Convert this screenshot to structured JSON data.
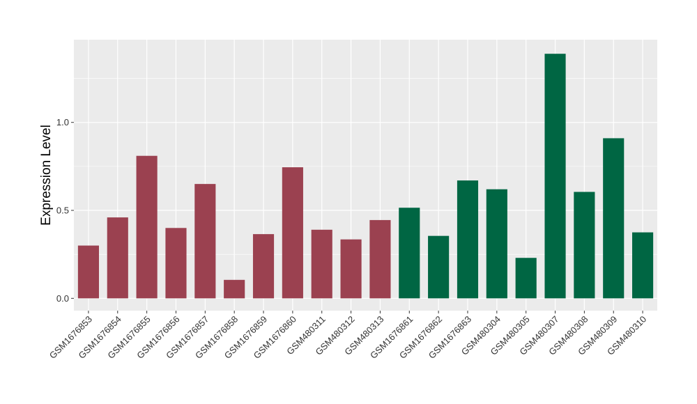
{
  "chart_data": {
    "type": "bar",
    "ylabel": "Expression Level",
    "xlabel": "",
    "title": "",
    "ylim": [
      -0.07,
      1.47
    ],
    "yticks": [
      0.0,
      0.5,
      1.0
    ],
    "ytick_labels": [
      "0.0",
      "0.5",
      "1.0"
    ],
    "grid": true,
    "categories": [
      "GSM1676853",
      "GSM1676854",
      "GSM1676855",
      "GSM1676856",
      "GSM1676857",
      "GSM1676858",
      "GSM1676859",
      "GSM1676860",
      "GSM480311",
      "GSM480312",
      "GSM480313",
      "GSM1676861",
      "GSM1676862",
      "GSM1676863",
      "GSM480304",
      "GSM480305",
      "GSM480307",
      "GSM480308",
      "GSM480309",
      "GSM480310"
    ],
    "values": [
      0.3,
      0.46,
      0.81,
      0.4,
      0.65,
      0.105,
      0.365,
      0.745,
      0.39,
      0.335,
      0.445,
      0.515,
      0.355,
      0.67,
      0.62,
      0.23,
      1.39,
      0.605,
      0.91,
      0.375
    ],
    "groups": [
      0,
      0,
      0,
      0,
      0,
      0,
      0,
      0,
      0,
      0,
      0,
      1,
      1,
      1,
      1,
      1,
      1,
      1,
      1,
      1
    ],
    "group_colors": [
      "#9b4150",
      "#006643"
    ],
    "panel_color": "#ebebeb",
    "grid_color": "#ffffff"
  }
}
